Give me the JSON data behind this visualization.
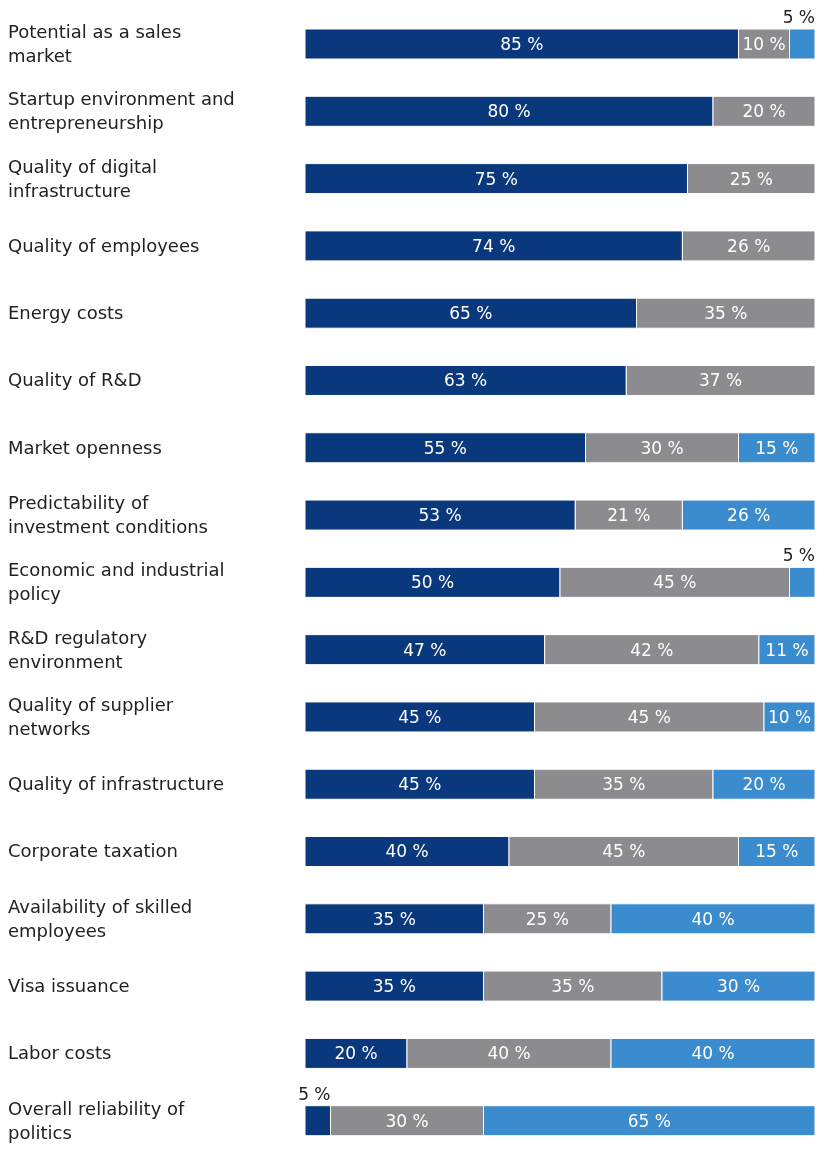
{
  "chart_data": {
    "type": "bar",
    "orientation": "horizontal",
    "stacked": true,
    "tick_labels": "y",
    "xlim": [
      0,
      100
    ],
    "categories": [
      "Potential as a sales market",
      "Startup environment and entrepreneurship",
      "Quality of digital infrastructure",
      "Quality of employees",
      "Energy costs",
      "Quality of R&D",
      "Market openness",
      "Predictability of investment conditions",
      "Economic and industrial policy",
      "R&D regulatory environment",
      "Quality of supplier networks",
      "Quality of infrastructure",
      "Corporate taxation",
      "Availability of skilled employees",
      "Visa issuance",
      "Labor costs",
      "Overall reliability of politics"
    ],
    "series": [
      {
        "color": "#0a387c",
        "values": [
          85,
          80,
          75,
          74,
          65,
          63,
          55,
          53,
          50,
          47,
          45,
          45,
          40,
          35,
          35,
          20,
          5
        ],
        "value_labels": [
          "85 %",
          "80 %",
          "75 %",
          "74 %",
          "65 %",
          "63 %",
          "55 %",
          "53 %",
          "50 %",
          "47 %",
          "45 %",
          "45 %",
          "40 %",
          "35 %",
          "35 %",
          "20 %",
          "5 %"
        ]
      },
      {
        "color": "#8c8c90",
        "values": [
          10,
          20,
          25,
          26,
          35,
          37,
          30,
          21,
          45,
          42,
          45,
          35,
          45,
          25,
          35,
          40,
          30
        ],
        "value_labels": [
          "10 %",
          "20 %",
          "25 %",
          "26 %",
          "35 %",
          "37 %",
          "30 %",
          "21 %",
          "45 %",
          "42 %",
          "45 %",
          "35 %",
          "45 %",
          "25 %",
          "35 %",
          "40 %",
          "30 %"
        ]
      },
      {
        "color": "#3a8ccf",
        "values": [
          5,
          null,
          null,
          null,
          null,
          null,
          15,
          26,
          5,
          11,
          10,
          20,
          15,
          40,
          30,
          40,
          65
        ],
        "value_labels": [
          "5 %",
          null,
          null,
          null,
          null,
          null,
          "15 %",
          "26 %",
          "5 %",
          "11 %",
          "10 %",
          "20 %",
          "15 %",
          "40 %",
          "30 %",
          "40 %",
          "65 %"
        ]
      }
    ]
  }
}
